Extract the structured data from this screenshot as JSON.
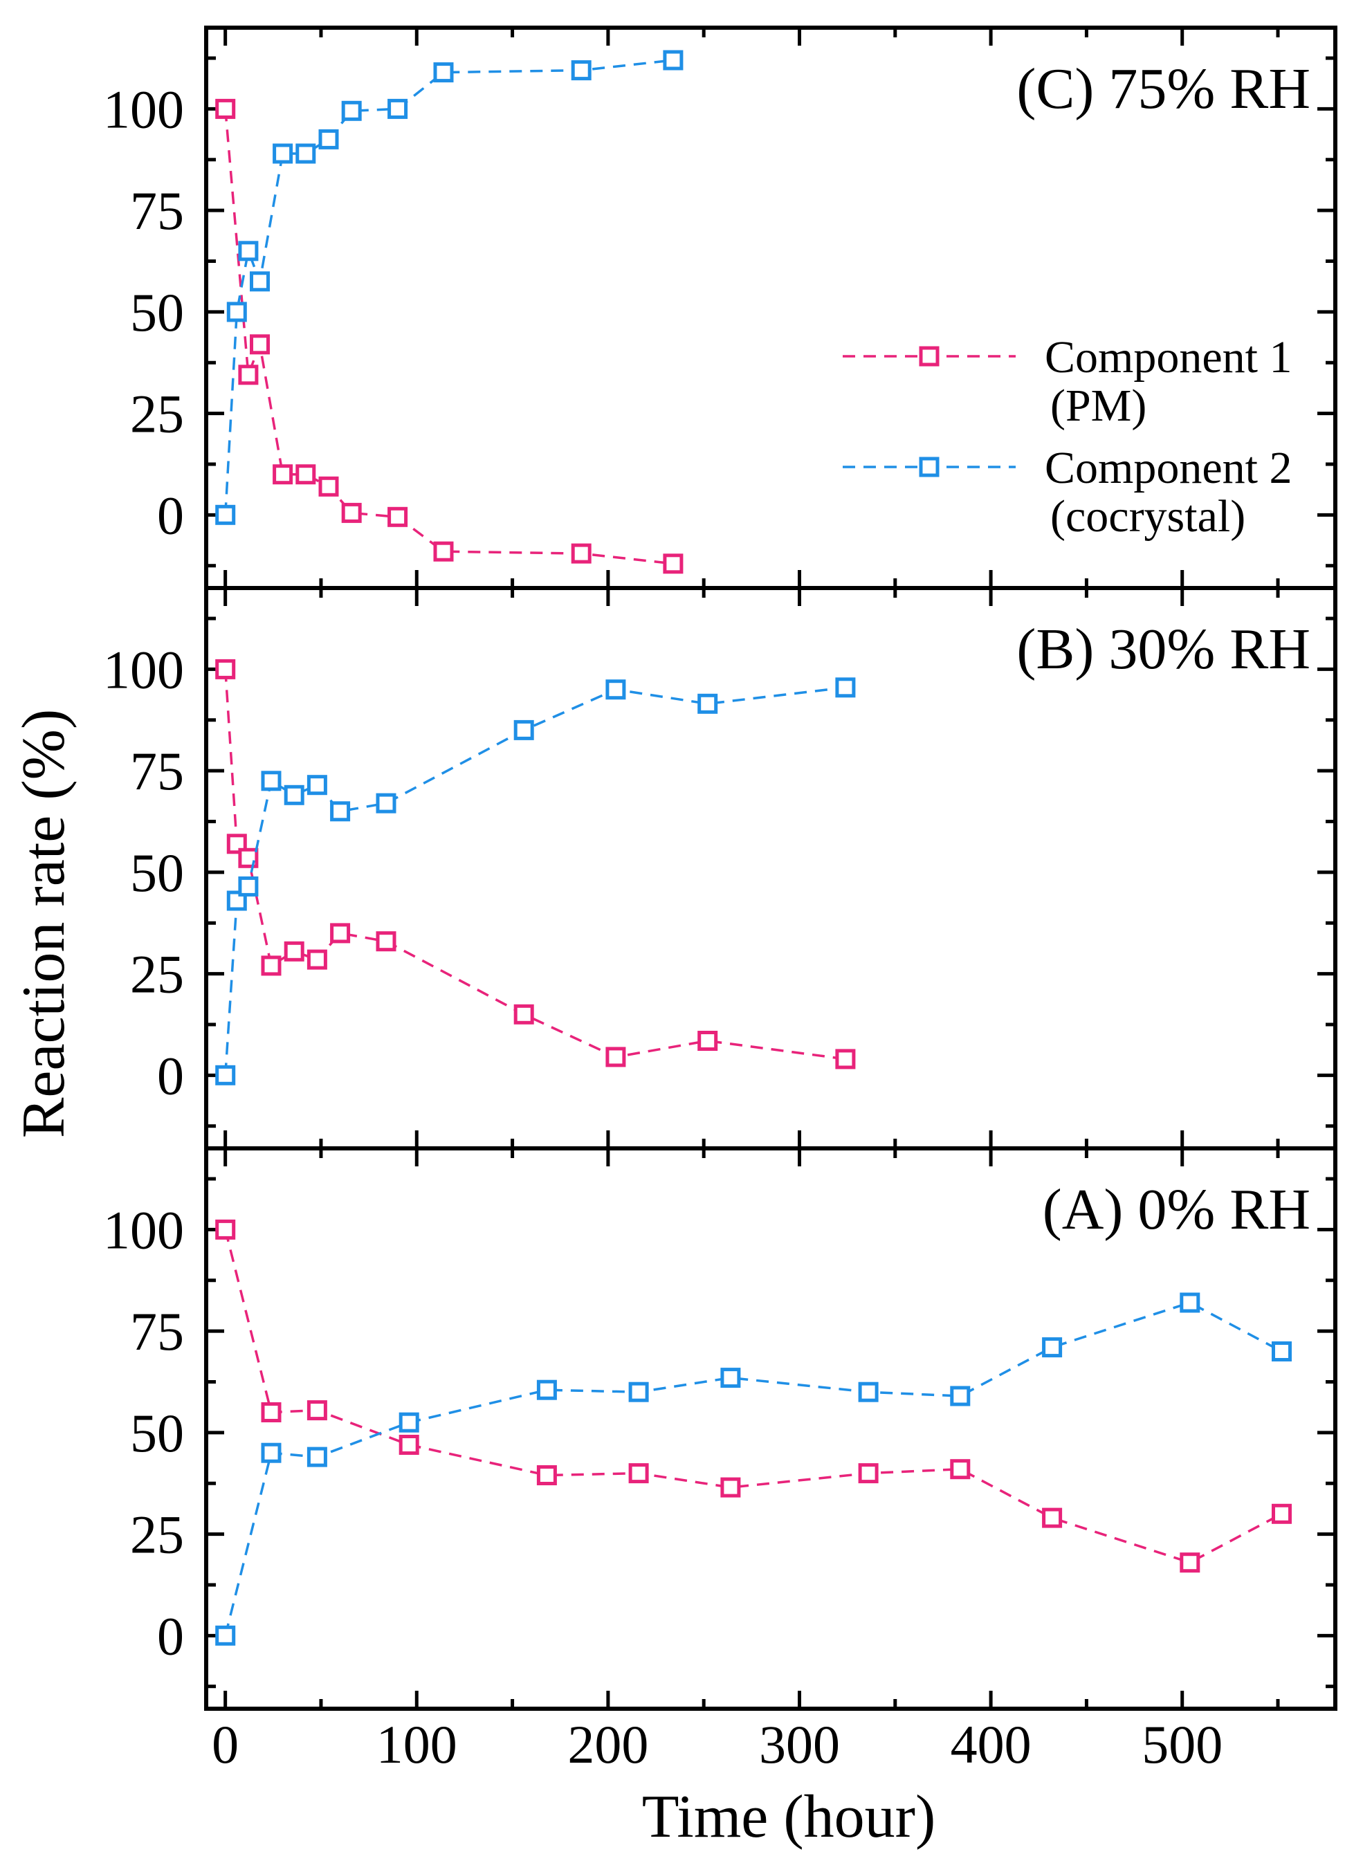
{
  "chart_data": {
    "type": "line",
    "ylabel": "Reaction rate (%)",
    "xlabel": "Time (hour)",
    "xlim": [
      -10,
      580
    ],
    "ylim": [
      -18,
      120
    ],
    "xticks": [
      0,
      100,
      200,
      300,
      400,
      500
    ],
    "yticks": [
      0,
      25,
      50,
      75,
      100
    ],
    "legend": {
      "placement": "right (panel C)",
      "entries": [
        {
          "line1": "Component 1",
          "line2": "(PM)",
          "color": "#e8237a"
        },
        {
          "line1": "Component 2",
          "line2": "(cocrystal)",
          "color": "#1f8fe6"
        }
      ]
    },
    "panels": [
      {
        "id": "C",
        "title": "(C) 75% RH",
        "series": [
          {
            "name": "Component 1 (PM)",
            "color": "#e8237a",
            "x": [
              0,
              12,
              18,
              30,
              42,
              54,
              66,
              90,
              114,
              186,
              234
            ],
            "y": [
              100,
              34.5,
              42,
              10,
              10,
              7,
              0.5,
              -0.5,
              -9,
              -9.5,
              -12
            ]
          },
          {
            "name": "Component 2 (cocrystal)",
            "color": "#1f8fe6",
            "x": [
              0,
              6,
              12,
              18,
              30,
              42,
              54,
              66,
              90,
              114,
              186,
              234
            ],
            "y": [
              0,
              50,
              65,
              57.5,
              89,
              89,
              92.5,
              99.5,
              100,
              109,
              109.5,
              112
            ]
          }
        ]
      },
      {
        "id": "B",
        "title": "(B) 30% RH",
        "series": [
          {
            "name": "Component 1 (PM)",
            "color": "#e8237a",
            "x": [
              0,
              6,
              12,
              24,
              36,
              48,
              60,
              84,
              156,
              204,
              252,
              324
            ],
            "y": [
              100,
              57,
              53.5,
              27,
              30.5,
              28.5,
              35,
              33,
              15,
              4.5,
              8.5,
              4
            ]
          },
          {
            "name": "Component 2 (cocrystal)",
            "color": "#1f8fe6",
            "x": [
              0,
              6,
              12,
              24,
              36,
              48,
              60,
              84,
              156,
              204,
              252,
              324
            ],
            "y": [
              0,
              43,
              46.5,
              72.5,
              69,
              71.5,
              65,
              67,
              85,
              95,
              91.5,
              95.5
            ]
          }
        ]
      },
      {
        "id": "A",
        "title": "(A) 0% RH",
        "series": [
          {
            "name": "Component 1 (PM)",
            "color": "#e8237a",
            "x": [
              0,
              24,
              48,
              96,
              168,
              216,
              264,
              336,
              384,
              432,
              504,
              552
            ],
            "y": [
              100,
              55,
              55.5,
              47,
              39.5,
              40,
              36.5,
              40,
              41,
              29,
              18,
              30
            ]
          },
          {
            "name": "Component 2 (cocrystal)",
            "color": "#1f8fe6",
            "x": [
              0,
              24,
              48,
              96,
              168,
              216,
              264,
              336,
              384,
              432,
              504,
              552
            ],
            "y": [
              0,
              45,
              44,
              52.5,
              60.5,
              60,
              63.5,
              60,
              59,
              71,
              82,
              70
            ]
          }
        ]
      }
    ]
  }
}
